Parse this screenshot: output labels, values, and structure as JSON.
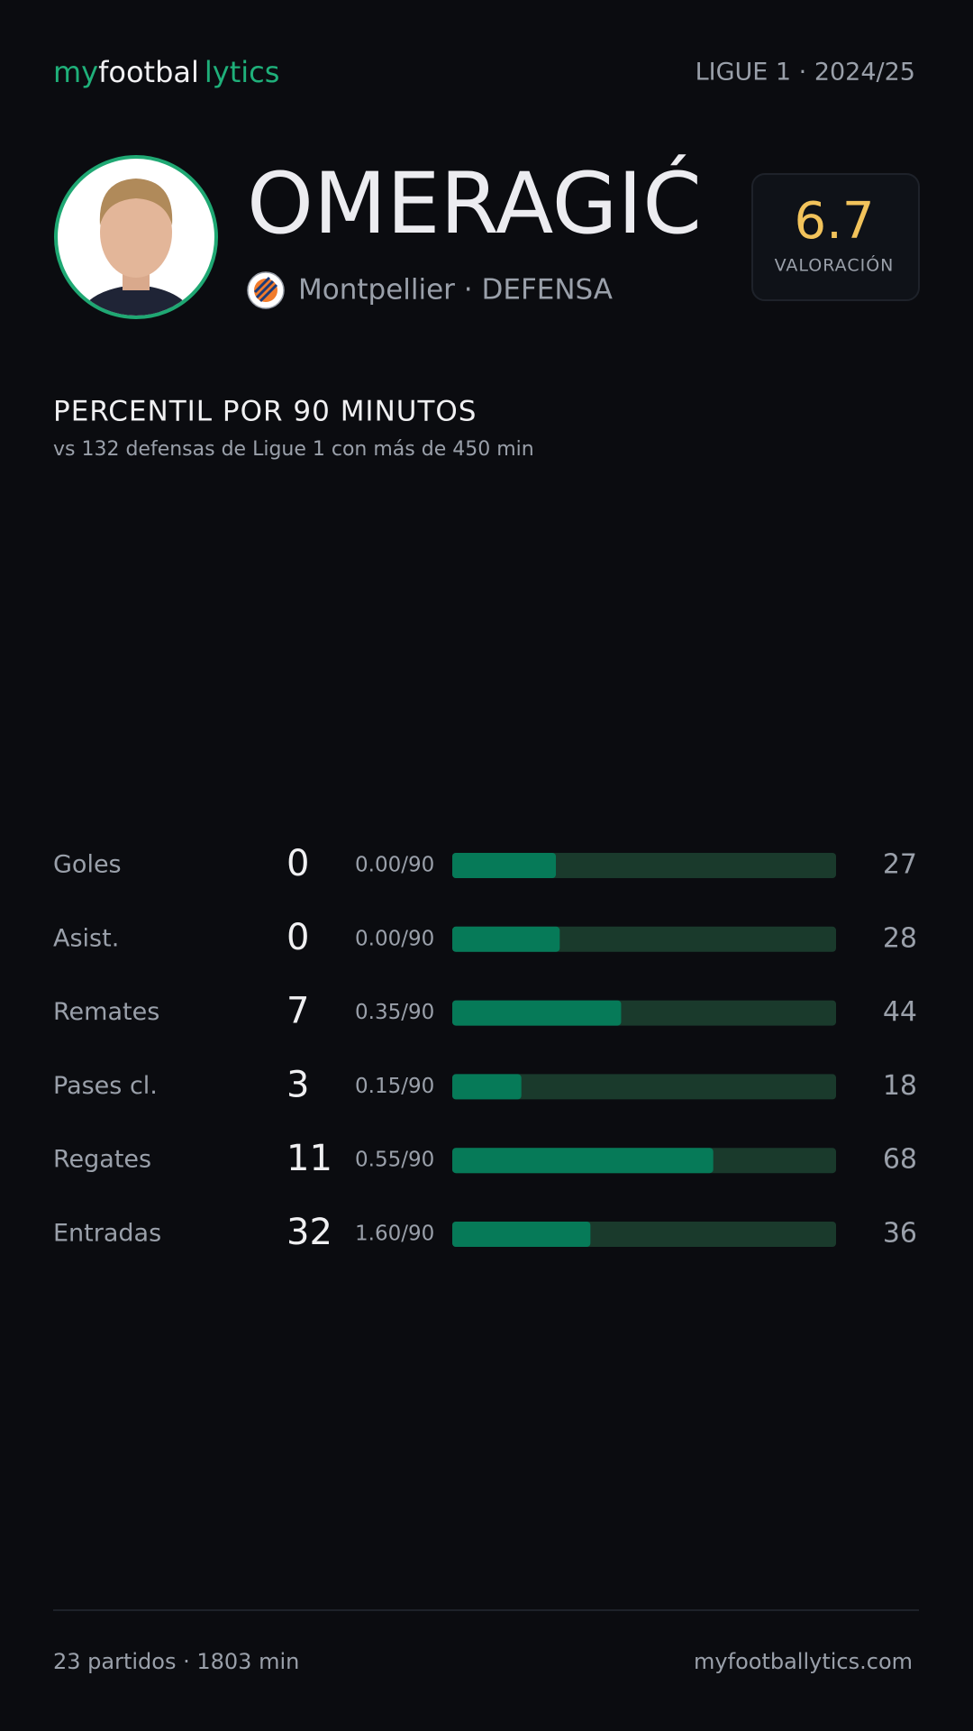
{
  "header": {
    "brand": [
      "my",
      "footbal",
      "lytics"
    ],
    "competition": "LIGUE 1 · 2024/25"
  },
  "player": {
    "name": "OMERAGIĆ",
    "subtitle": "Montpellier · DEFENSA",
    "rating": "6.7",
    "rating_label": "VALORACIÓN"
  },
  "stats": {
    "title": "PERCENTIL POR 90 MINUTOS",
    "subtitle": "vs 132 defensas de Ligue 1 con más de 450 min",
    "xlim": [
      0,
      100
    ],
    "rows": [
      {
        "label": "Goles",
        "total": "0",
        "per90": "0.00/90",
        "percentile": 27
      },
      {
        "label": "Asist.",
        "total": "0",
        "per90": "0.00/90",
        "percentile": 28
      },
      {
        "label": "Remates",
        "total": "7",
        "per90": "0.35/90",
        "percentile": 44
      },
      {
        "label": "Pases cl.",
        "total": "3",
        "per90": "0.15/90",
        "percentile": 18
      },
      {
        "label": "Regates",
        "total": "11",
        "per90": "0.55/90",
        "percentile": 68
      },
      {
        "label": "Entradas",
        "total": "32",
        "per90": "1.60/90",
        "percentile": 36
      }
    ]
  },
  "footer": {
    "summary": "23 partidos · 1803 min",
    "site": "myfootballytics.com"
  }
}
